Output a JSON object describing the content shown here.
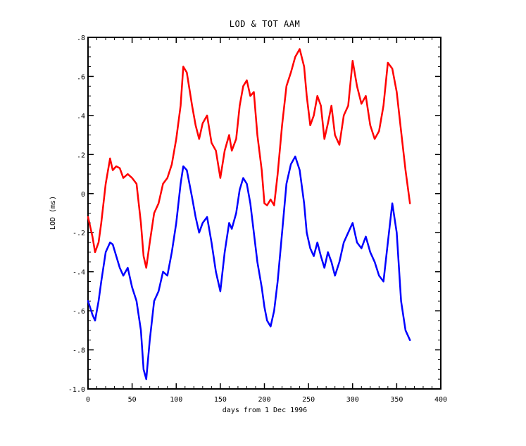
{
  "chart_data": {
    "type": "line",
    "title": "LOD & TOT AAM",
    "xlabel": "days from 1 Dec 1996",
    "ylabel": "LOD (ms)",
    "xlim": [
      0,
      400
    ],
    "ylim": [
      -1.0,
      0.8
    ],
    "x_ticks": [
      0,
      50,
      100,
      150,
      200,
      250,
      300,
      350,
      400
    ],
    "x_tick_labels": [
      "0",
      "50",
      "100",
      "150",
      "200",
      "250",
      "300",
      "350",
      "400"
    ],
    "y_ticks": [
      -1.0,
      -0.8,
      -0.6,
      -0.4,
      -0.2,
      0,
      0.2,
      0.4,
      0.6,
      0.8
    ],
    "y_tick_labels": [
      "-1.0",
      "-.8",
      "-.6",
      "-.4",
      "-.2",
      "0",
      ".2",
      ".4",
      ".6",
      ".8"
    ],
    "grid": false,
    "legend": "none",
    "series": [
      {
        "color": "#ff0000",
        "x": [
          0,
          5,
          8,
          12,
          15,
          20,
          25,
          28,
          32,
          36,
          40,
          45,
          50,
          55,
          60,
          63,
          66,
          70,
          75,
          80,
          85,
          90,
          95,
          100,
          105,
          108,
          112,
          118,
          122,
          126,
          130,
          135,
          140,
          145,
          150,
          155,
          160,
          163,
          168,
          172,
          176,
          180,
          184,
          188,
          192,
          197,
          200,
          203,
          207,
          211,
          215,
          220,
          225,
          230,
          235,
          240,
          245,
          248,
          252,
          256,
          260,
          264,
          268,
          272,
          276,
          280,
          285,
          290,
          295,
          300,
          305,
          310,
          315,
          320,
          325,
          330,
          335,
          340,
          345,
          350,
          355,
          360,
          365
        ],
        "values": [
          -0.12,
          -0.22,
          -0.3,
          -0.25,
          -0.15,
          0.05,
          0.18,
          0.12,
          0.14,
          0.13,
          0.08,
          0.1,
          0.08,
          0.05,
          -0.15,
          -0.32,
          -0.38,
          -0.25,
          -0.1,
          -0.05,
          0.05,
          0.08,
          0.15,
          0.28,
          0.45,
          0.65,
          0.62,
          0.45,
          0.35,
          0.28,
          0.36,
          0.4,
          0.26,
          0.22,
          0.08,
          0.22,
          0.3,
          0.22,
          0.28,
          0.45,
          0.55,
          0.58,
          0.5,
          0.52,
          0.3,
          0.12,
          -0.05,
          -0.06,
          -0.03,
          -0.06,
          0.1,
          0.35,
          0.55,
          0.62,
          0.7,
          0.74,
          0.65,
          0.5,
          0.35,
          0.4,
          0.5,
          0.45,
          0.28,
          0.36,
          0.45,
          0.3,
          0.25,
          0.4,
          0.45,
          0.68,
          0.55,
          0.46,
          0.5,
          0.35,
          0.28,
          0.32,
          0.45,
          0.67,
          0.64,
          0.52,
          0.32,
          0.12,
          -0.05
        ]
      },
      {
        "color": "#0000ff",
        "x": [
          0,
          5,
          8,
          12,
          15,
          20,
          25,
          28,
          32,
          36,
          40,
          45,
          50,
          55,
          60,
          63,
          66,
          70,
          75,
          80,
          85,
          90,
          95,
          100,
          105,
          108,
          112,
          118,
          122,
          126,
          130,
          135,
          140,
          145,
          150,
          155,
          160,
          163,
          168,
          172,
          176,
          180,
          184,
          188,
          192,
          197,
          200,
          203,
          207,
          211,
          215,
          220,
          225,
          230,
          235,
          240,
          245,
          248,
          252,
          256,
          260,
          264,
          268,
          272,
          276,
          280,
          285,
          290,
          295,
          300,
          305,
          310,
          315,
          320,
          325,
          330,
          335,
          340,
          345,
          350,
          355,
          360,
          365
        ],
        "values": [
          -0.55,
          -0.62,
          -0.65,
          -0.55,
          -0.45,
          -0.3,
          -0.25,
          -0.26,
          -0.32,
          -0.38,
          -0.42,
          -0.38,
          -0.48,
          -0.55,
          -0.7,
          -0.9,
          -0.95,
          -0.75,
          -0.55,
          -0.5,
          -0.4,
          -0.42,
          -0.3,
          -0.15,
          0.05,
          0.14,
          0.12,
          -0.02,
          -0.12,
          -0.2,
          -0.15,
          -0.12,
          -0.25,
          -0.4,
          -0.5,
          -0.3,
          -0.15,
          -0.18,
          -0.1,
          0.02,
          0.08,
          0.05,
          -0.05,
          -0.2,
          -0.35,
          -0.48,
          -0.58,
          -0.65,
          -0.68,
          -0.6,
          -0.45,
          -0.2,
          0.05,
          0.15,
          0.19,
          0.12,
          -0.05,
          -0.2,
          -0.28,
          -0.32,
          -0.25,
          -0.32,
          -0.38,
          -0.3,
          -0.35,
          -0.42,
          -0.35,
          -0.25,
          -0.2,
          -0.15,
          -0.25,
          -0.28,
          -0.22,
          -0.3,
          -0.35,
          -0.42,
          -0.45,
          -0.25,
          -0.05,
          -0.2,
          -0.55,
          -0.7,
          -0.75
        ]
      }
    ]
  }
}
